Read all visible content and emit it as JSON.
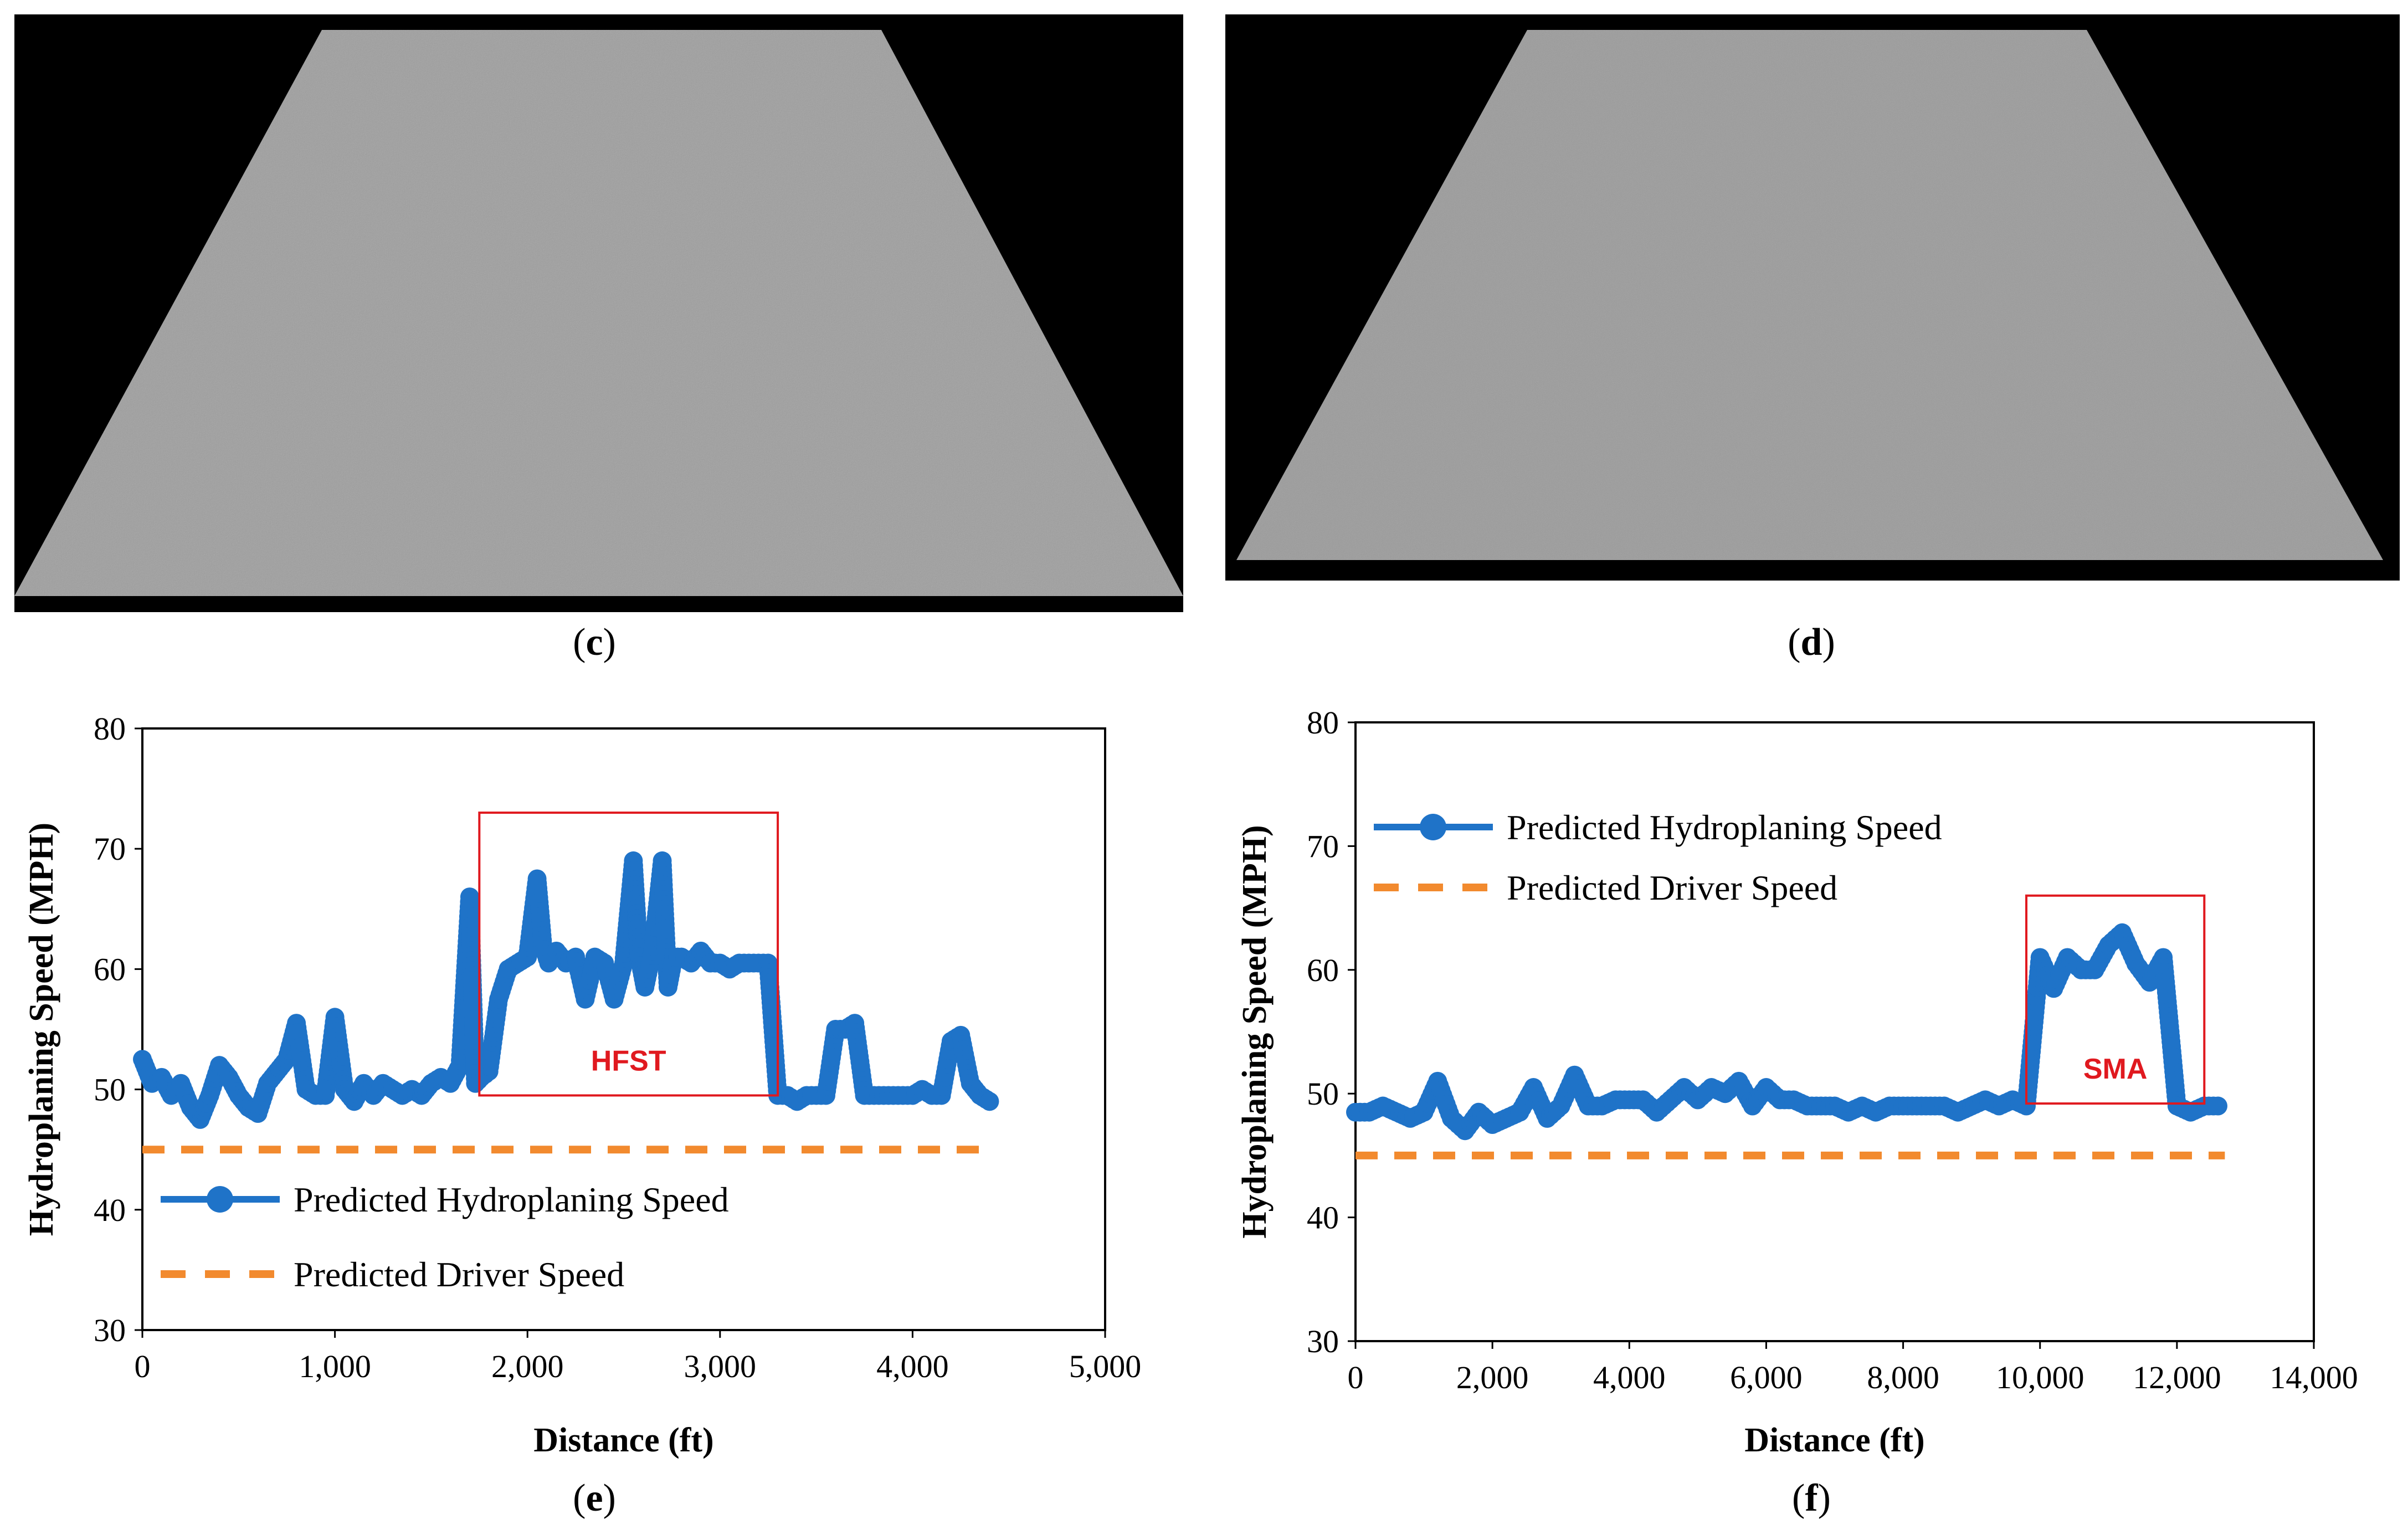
{
  "panels": {
    "c": {
      "caption": "c"
    },
    "d": {
      "caption": "d"
    },
    "e": {
      "caption": "e"
    },
    "f": {
      "caption": "f"
    }
  },
  "colors": {
    "series_hydro": "#1f73c8",
    "series_driver": "#f28a2e",
    "highlight": "#e0191f",
    "surface_bg": "#000000",
    "surface": "#9a9a9a"
  },
  "chart_data": [
    {
      "id": "e",
      "type": "line",
      "xlabel": "Distance (ft)",
      "ylabel": "Hydroplaning Speed (MPH)",
      "xlim": [
        0,
        5000
      ],
      "ylim": [
        30,
        80
      ],
      "xticks": [
        0,
        1000,
        2000,
        3000,
        4000,
        5000
      ],
      "xtick_labels": [
        "0",
        "1,000",
        "2,000",
        "3,000",
        "4,000",
        "5,000"
      ],
      "yticks": [
        30,
        40,
        50,
        60,
        70,
        80
      ],
      "ytick_labels": [
        "30",
        "40",
        "50",
        "60",
        "70",
        "80"
      ],
      "legend_position": "bottom-left",
      "series": [
        {
          "name": "Predicted Hydroplaning Speed",
          "style": "line-marker",
          "x": [
            0,
            50,
            100,
            150,
            200,
            250,
            300,
            350,
            400,
            450,
            500,
            550,
            600,
            650,
            700,
            750,
            800,
            850,
            900,
            950,
            1000,
            1050,
            1100,
            1150,
            1200,
            1250,
            1300,
            1350,
            1400,
            1450,
            1500,
            1550,
            1600,
            1650,
            1700,
            1730,
            1760,
            1800,
            1850,
            1900,
            1950,
            2000,
            2050,
            2080,
            2110,
            2150,
            2200,
            2250,
            2300,
            2350,
            2400,
            2450,
            2500,
            2550,
            2580,
            2610,
            2650,
            2700,
            2730,
            2760,
            2800,
            2850,
            2900,
            2950,
            3000,
            3050,
            3100,
            3150,
            3200,
            3250,
            3300,
            3350,
            3400,
            3450,
            3500,
            3550,
            3600,
            3650,
            3700,
            3750,
            3800,
            3850,
            3900,
            3950,
            4000,
            4050,
            4100,
            4150,
            4200,
            4250,
            4300,
            4350,
            4400
          ],
          "values": [
            52.5,
            50.5,
            51,
            49.5,
            50.5,
            48.5,
            47.5,
            49.5,
            52,
            51,
            49.5,
            48.5,
            48,
            50.5,
            51.5,
            52.5,
            55.5,
            50,
            49.5,
            49.5,
            56,
            50,
            49,
            50.5,
            49.5,
            50.5,
            50,
            49.5,
            50,
            49.5,
            50.5,
            51,
            50.5,
            52,
            66,
            50.5,
            51,
            51.5,
            57.5,
            60,
            60.5,
            61,
            67.5,
            62,
            60.5,
            61.5,
            60.5,
            61,
            57.5,
            61,
            60.5,
            57.5,
            60.5,
            69,
            61,
            58.5,
            61.5,
            69,
            58.5,
            61,
            61,
            60.5,
            61.5,
            60.5,
            60.5,
            60,
            60.5,
            60.5,
            60.5,
            60.5,
            49.5,
            49.5,
            49,
            49.5,
            49.5,
            49.5,
            55,
            55,
            55.5,
            49.5,
            49.5,
            49.5,
            49.5,
            49.5,
            49.5,
            50,
            49.5,
            49.5,
            54,
            54.5,
            50.5,
            49.5,
            49
          ]
        },
        {
          "name": "Predicted Driver Speed",
          "style": "dashed",
          "x": [
            0,
            4400
          ],
          "values": [
            45,
            45
          ]
        }
      ],
      "highlight": {
        "label": "HFST",
        "x_range": [
          1750,
          3300
        ],
        "y_range": [
          49.5,
          73
        ]
      }
    },
    {
      "id": "f",
      "type": "line",
      "xlabel": "Distance (ft)",
      "ylabel": "Hydroplaning Speed (MPH)",
      "xlim": [
        0,
        14000
      ],
      "ylim": [
        30,
        80
      ],
      "xticks": [
        0,
        2000,
        4000,
        6000,
        8000,
        10000,
        12000,
        14000
      ],
      "xtick_labels": [
        "0",
        "2,000",
        "4,000",
        "6,000",
        "8,000",
        "10,000",
        "12,000",
        "14,000"
      ],
      "yticks": [
        30,
        40,
        50,
        60,
        70,
        80
      ],
      "ytick_labels": [
        "30",
        "40",
        "50",
        "60",
        "70",
        "80"
      ],
      "legend_position": "top-left",
      "series": [
        {
          "name": "Predicted Hydroplaning Speed",
          "style": "line-marker",
          "x": [
            0,
            200,
            400,
            600,
            800,
            1000,
            1200,
            1400,
            1600,
            1800,
            2000,
            2200,
            2400,
            2600,
            2800,
            3000,
            3200,
            3400,
            3600,
            3800,
            4000,
            4200,
            4400,
            4600,
            4800,
            5000,
            5200,
            5400,
            5600,
            5800,
            6000,
            6200,
            6400,
            6600,
            6800,
            7000,
            7200,
            7400,
            7600,
            7800,
            8000,
            8200,
            8400,
            8600,
            8800,
            9000,
            9200,
            9400,
            9600,
            9800,
            10000,
            10200,
            10400,
            10600,
            10800,
            11000,
            11200,
            11400,
            11600,
            11800,
            12000,
            12200,
            12400,
            12600
          ],
          "values": [
            48.5,
            48.5,
            49,
            48.5,
            48,
            48.5,
            51,
            48,
            47,
            48.5,
            47.5,
            48,
            48.5,
            50.5,
            48,
            49,
            51.5,
            49,
            49,
            49.5,
            49.5,
            49.5,
            48.5,
            49.5,
            50.5,
            49.5,
            50.5,
            50,
            51,
            49,
            50.5,
            49.5,
            49.5,
            49,
            49,
            49,
            48.5,
            49,
            48.5,
            49,
            49,
            49,
            49,
            49,
            48.5,
            49,
            49.5,
            49,
            49.5,
            49,
            61,
            58.5,
            61,
            60,
            60,
            62,
            63,
            60.5,
            59,
            61,
            49,
            48.5,
            49,
            49
          ]
        },
        {
          "name": "Predicted Driver Speed",
          "style": "dashed",
          "x": [
            0,
            12700
          ],
          "values": [
            45,
            45
          ]
        }
      ],
      "highlight": {
        "label": "SMA",
        "x_range": [
          9800,
          12400
        ],
        "y_range": [
          49.2,
          66
        ]
      }
    }
  ]
}
